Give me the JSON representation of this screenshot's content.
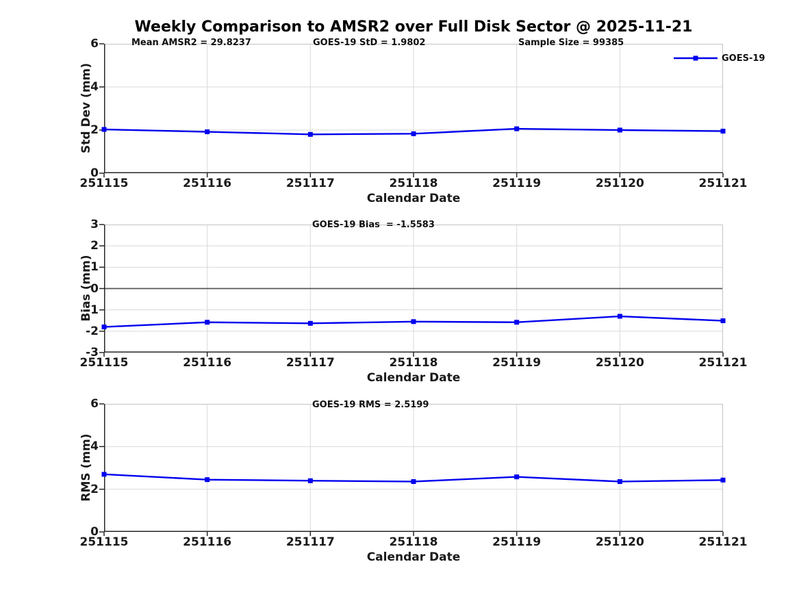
{
  "title": "Weekly Comparison to AMSR2 over Full Disk Sector @ 2025-11-21",
  "colors": {
    "line": "#0000EE",
    "grid": "#d9d9d9",
    "spine_light": "#c4c4c4",
    "axis": "#262626",
    "zero_line": "#565656",
    "text": "#1a1a1a"
  },
  "legend": {
    "label": "GOES-19"
  },
  "chart_data": [
    {
      "type": "line",
      "ylabel": "Std Dev (mm)",
      "xlabel": "Calendar Date",
      "categories": [
        "251115",
        "251116",
        "251117",
        "251118",
        "251119",
        "251120",
        "251121"
      ],
      "series": [
        {
          "name": "GOES-19",
          "values": [
            2.03,
            1.92,
            1.8,
            1.83,
            2.06,
            2.0,
            1.95
          ]
        }
      ],
      "ylim": [
        0,
        6
      ],
      "yticks": [
        0,
        2,
        4,
        6
      ],
      "grid": true,
      "zero_line": false,
      "legend_position": "top-right",
      "annotations": [
        "Mean AMSR2 = 29.8237",
        "GOES-19 StD = 1.9802",
        "Sample Size = 99385"
      ]
    },
    {
      "type": "line",
      "ylabel": "Bias (mm)",
      "xlabel": "Calendar Date",
      "categories": [
        "251115",
        "251116",
        "251117",
        "251118",
        "251119",
        "251120",
        "251121"
      ],
      "series": [
        {
          "name": "GOES-19",
          "values": [
            -1.8,
            -1.58,
            -1.63,
            -1.55,
            -1.58,
            -1.3,
            -1.51
          ]
        }
      ],
      "ylim": [
        -3,
        3
      ],
      "yticks": [
        -3,
        -2,
        -1,
        0,
        1,
        2,
        3
      ],
      "grid": true,
      "zero_line": true,
      "annotations": [
        "GOES-19 Bias  = -1.5583"
      ]
    },
    {
      "type": "line",
      "ylabel": "RMS (mm)",
      "xlabel": "Calendar Date",
      "categories": [
        "251115",
        "251116",
        "251117",
        "251118",
        "251119",
        "251120",
        "251121"
      ],
      "series": [
        {
          "name": "GOES-19",
          "values": [
            2.7,
            2.45,
            2.4,
            2.36,
            2.58,
            2.36,
            2.43
          ]
        }
      ],
      "ylim": [
        0,
        6
      ],
      "yticks": [
        0,
        2,
        4,
        6
      ],
      "grid": true,
      "zero_line": false,
      "annotations": [
        "GOES-19 RMS = 2.5199"
      ]
    }
  ]
}
